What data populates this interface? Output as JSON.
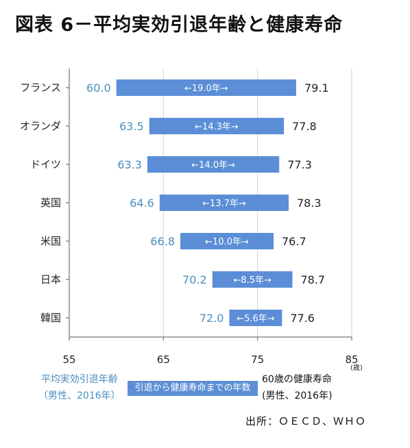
{
  "title": "図表 6－平均実効引退年齢と健康寿命",
  "chart_data": {
    "type": "bar",
    "subtype": "floating-range",
    "categories": [
      "フランス",
      "オランダ",
      "ドイツ",
      "英国",
      "米国",
      "日本",
      "韓国"
    ],
    "start_values": [
      60.0,
      63.5,
      63.3,
      64.6,
      66.8,
      70.2,
      72.0
    ],
    "end_values": [
      79.1,
      77.8,
      77.3,
      78.3,
      76.7,
      78.7,
      77.6
    ],
    "start_labels": [
      "60.0",
      "63.5",
      "63.3",
      "64.6",
      "66.8",
      "70.2",
      "72.0"
    ],
    "end_labels": [
      "79.1",
      "77.8",
      "77.3",
      "78.3",
      "76.7",
      "78.7",
      "77.6"
    ],
    "gap_labels": [
      "←19.0年→",
      "←14.3年→",
      "←14.0年→",
      "←13.7年→",
      "←10.0年→",
      "←8.5年→",
      "←5.6年→"
    ],
    "xlim": [
      55,
      85
    ],
    "xticks": [
      55,
      65,
      75,
      85
    ],
    "x_unit": "(歳)",
    "grid": true,
    "bar_color": "#5b8ed6",
    "start_label_color": "#4a8fc0"
  },
  "legend": {
    "left_line1": "平均実効引退年齢",
    "left_line2": "（男性、2016年）",
    "middle": "引退から健康寿命までの年数",
    "right_line1": "60歳の健康寿命",
    "right_line2": "(男性、2016年)"
  },
  "source": "出所：ＯＥＣＤ、ＷＨＯ"
}
